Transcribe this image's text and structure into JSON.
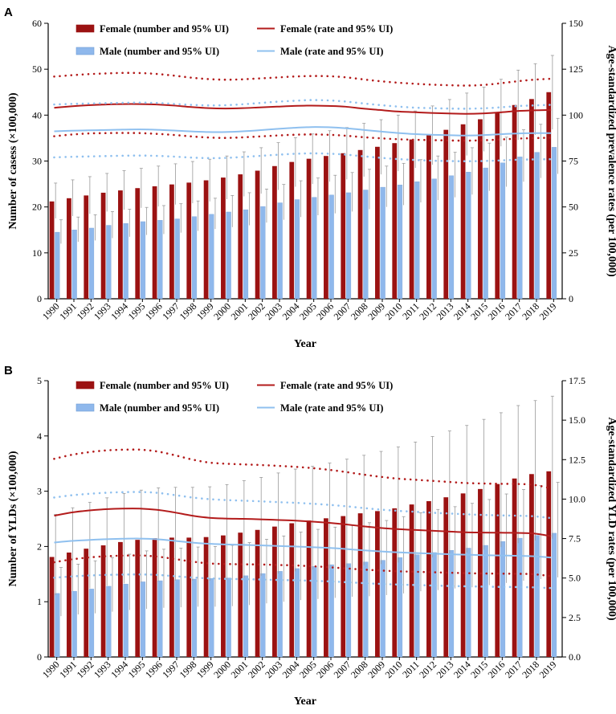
{
  "chart_data": [
    {
      "panel": "A",
      "type": "bar+line",
      "categories": [
        "1990",
        "1991",
        "1992",
        "1993",
        "1994",
        "1995",
        "1996",
        "1997",
        "1998",
        "1999",
        "2000",
        "2001",
        "2002",
        "2003",
        "2004",
        "2005",
        "2006",
        "2007",
        "2008",
        "2009",
        "2010",
        "2011",
        "2012",
        "2013",
        "2014",
        "2015",
        "2016",
        "2017",
        "2018",
        "2019"
      ],
      "xlabel": "Year",
      "ylabel_left": "Number of casess (×100,000)",
      "ylabel_right": "Age-standardized prevalence rates (per 100,000)",
      "ylim_left": [
        0,
        60
      ],
      "ylim_right": [
        0,
        150
      ],
      "yticks_left": [
        "0",
        "10",
        "20",
        "30",
        "40",
        "50",
        "60"
      ],
      "yticks_right": [
        "0",
        "25",
        "50",
        "75",
        "100",
        "125",
        "150"
      ],
      "legend": [
        "Female (number and 95% UI)",
        "Female (rate and 95% UI)",
        "Male (number and 95% UI)",
        "Male (rate and 95% UI)"
      ],
      "colors": {
        "female_bar": "#9b1212",
        "female_line": "#b31b1b",
        "male_bar": "#8fb8ec",
        "male_line": "#8fc0ef",
        "errorbar": "#9a9a9a"
      },
      "series": [
        {
          "name": "Female (number and 95% UI)",
          "kind": "bar",
          "values": [
            21.2,
            21.9,
            22.5,
            23.1,
            23.6,
            24.1,
            24.5,
            24.9,
            25.3,
            25.8,
            26.4,
            27.1,
            27.9,
            28.9,
            29.8,
            30.5,
            31.1,
            31.7,
            32.4,
            33.1,
            33.9,
            34.7,
            35.6,
            36.8,
            38.0,
            39.1,
            40.5,
            42.2,
            43.5,
            45.0
          ],
          "lower": [
            17.5,
            18.0,
            18.5,
            19.0,
            19.4,
            19.8,
            20.1,
            20.5,
            20.8,
            21.2,
            21.7,
            22.3,
            22.9,
            23.7,
            24.4,
            25.0,
            25.5,
            26.0,
            26.6,
            27.1,
            27.8,
            28.5,
            29.2,
            30.2,
            31.2,
            32.1,
            33.2,
            34.6,
            35.7,
            36.9
          ],
          "upper": [
            25.2,
            25.9,
            26.6,
            27.3,
            27.9,
            28.4,
            28.9,
            29.4,
            29.9,
            30.4,
            31.1,
            32.0,
            32.9,
            34.0,
            35.1,
            35.9,
            36.6,
            37.3,
            38.2,
            39.0,
            40.0,
            40.9,
            42.0,
            43.4,
            44.8,
            46.1,
            47.8,
            49.8,
            51.2,
            53.0
          ]
        },
        {
          "name": "Male (number and 95% UI)",
          "kind": "bar",
          "values": [
            14.5,
            15.0,
            15.4,
            16.0,
            16.4,
            16.8,
            17.1,
            17.4,
            17.9,
            18.4,
            18.9,
            19.4,
            20.1,
            20.9,
            21.6,
            22.1,
            22.6,
            23.1,
            23.7,
            24.3,
            24.8,
            25.5,
            26.1,
            26.8,
            27.6,
            28.5,
            29.6,
            30.9,
            31.9,
            33.0
          ],
          "lower": [
            12.0,
            12.4,
            12.7,
            13.2,
            13.5,
            13.9,
            14.1,
            14.4,
            14.8,
            15.2,
            15.6,
            16.0,
            16.6,
            17.2,
            17.8,
            18.2,
            18.6,
            19.0,
            19.5,
            20.0,
            20.4,
            21.0,
            21.5,
            22.1,
            22.7,
            23.5,
            24.4,
            25.5,
            26.3,
            27.2
          ],
          "upper": [
            17.2,
            17.8,
            18.3,
            19.0,
            19.5,
            19.9,
            20.3,
            20.7,
            21.3,
            21.9,
            22.5,
            23.1,
            23.9,
            24.9,
            25.7,
            26.3,
            26.9,
            27.5,
            28.2,
            28.9,
            29.5,
            30.3,
            31.1,
            31.9,
            32.9,
            33.9,
            35.2,
            36.8,
            38.0,
            39.3
          ]
        },
        {
          "name": "Female (rate and 95% UI)",
          "kind": "line",
          "axis": "right",
          "values": [
            104.0,
            104.8,
            105.4,
            105.8,
            106.0,
            106.0,
            105.8,
            105.2,
            104.4,
            103.8,
            103.6,
            103.8,
            104.2,
            104.6,
            105.0,
            105.2,
            105.0,
            104.6,
            103.6,
            102.8,
            102.0,
            101.6,
            101.2,
            100.9,
            100.7,
            100.9,
            101.5,
            102.2,
            102.6,
            102.8
          ],
          "lower": [
            88.5,
            89.4,
            90.0,
            90.2,
            90.3,
            90.2,
            89.8,
            89.2,
            88.4,
            87.8,
            87.6,
            87.9,
            88.4,
            88.9,
            89.3,
            89.5,
            89.3,
            88.8,
            88.0,
            87.4,
            86.9,
            86.6,
            86.4,
            86.2,
            86.1,
            86.3,
            86.7,
            87.2,
            87.5,
            87.7
          ],
          "upper": [
            121.0,
            121.7,
            122.3,
            122.7,
            123.0,
            122.9,
            122.4,
            121.5,
            120.4,
            119.6,
            119.3,
            119.5,
            120.0,
            120.5,
            121.0,
            121.3,
            121.2,
            120.6,
            119.5,
            118.5,
            117.7,
            117.1,
            116.6,
            116.3,
            116.1,
            116.4,
            117.3,
            118.4,
            119.3,
            119.8
          ]
        },
        {
          "name": "Male (rate and 95% UI)",
          "kind": "line",
          "axis": "right",
          "values": [
            91.2,
            91.5,
            91.7,
            91.9,
            92.1,
            92.2,
            92.0,
            91.6,
            91.1,
            90.8,
            90.8,
            91.2,
            91.8,
            92.5,
            93.1,
            93.5,
            93.4,
            92.9,
            92.0,
            91.1,
            90.3,
            89.7,
            89.3,
            89.1,
            88.9,
            89.1,
            89.6,
            90.0,
            90.2,
            90.2
          ],
          "lower": [
            77.0,
            77.3,
            77.5,
            77.7,
            77.9,
            78.0,
            77.8,
            77.4,
            76.9,
            76.6,
            76.7,
            77.2,
            77.8,
            78.4,
            78.9,
            79.2,
            79.0,
            78.5,
            77.6,
            76.8,
            76.1,
            75.6,
            75.2,
            75.0,
            74.9,
            75.0,
            75.3,
            75.7,
            75.9,
            76.0
          ],
          "upper": [
            105.8,
            106.1,
            106.3,
            106.5,
            106.7,
            106.8,
            106.6,
            106.1,
            105.6,
            105.3,
            105.4,
            105.9,
            106.6,
            107.3,
            107.8,
            108.2,
            108.0,
            107.4,
            106.4,
            105.5,
            104.7,
            104.1,
            103.8,
            103.6,
            103.5,
            103.7,
            104.2,
            104.9,
            105.3,
            105.6
          ]
        }
      ]
    },
    {
      "panel": "B",
      "type": "bar+line",
      "categories": [
        "1990",
        "1991",
        "1992",
        "1993",
        "1994",
        "1995",
        "1996",
        "1997",
        "1998",
        "1999",
        "2000",
        "2001",
        "2002",
        "2003",
        "2004",
        "2005",
        "2006",
        "2007",
        "2008",
        "2009",
        "2010",
        "2011",
        "2012",
        "2013",
        "2014",
        "2015",
        "2016",
        "2017",
        "2018",
        "2019"
      ],
      "xlabel": "Year",
      "ylabel_left": "Number of YLDs (×100,000)",
      "ylabel_right": "Age-standardized YLD rates (per 100,000)",
      "ylim_left": [
        0,
        5
      ],
      "ylim_right": [
        0,
        17.5
      ],
      "yticks_left": [
        "0",
        "1",
        "2",
        "3",
        "4",
        "5"
      ],
      "yticks_right": [
        "0.0",
        "2.5",
        "5.0",
        "7.5",
        "10.0",
        "12.5",
        "15.0",
        "17.5"
      ],
      "legend": [
        "Female (number and 95% UI)",
        "Female (rate and 95% UI)",
        "Male (number and 95% UI)",
        "Male (rate and 95% UI)"
      ],
      "colors": {
        "female_bar": "#9b1212",
        "female_line": "#b31b1b",
        "male_bar": "#8fb8ec",
        "male_line": "#8fc0ef",
        "errorbar": "#9a9a9a"
      },
      "series": [
        {
          "name": "Female (number and 95% UI)",
          "kind": "bar",
          "values": [
            1.81,
            1.89,
            1.96,
            2.02,
            2.08,
            2.12,
            2.15,
            2.16,
            2.16,
            2.17,
            2.2,
            2.25,
            2.3,
            2.36,
            2.42,
            2.47,
            2.51,
            2.55,
            2.6,
            2.64,
            2.69,
            2.76,
            2.82,
            2.89,
            2.96,
            3.04,
            3.13,
            3.23,
            3.31,
            3.36
          ],
          "lower": [
            1.12,
            1.19,
            1.24,
            1.29,
            1.33,
            1.35,
            1.37,
            1.38,
            1.38,
            1.38,
            1.4,
            1.43,
            1.47,
            1.51,
            1.55,
            1.58,
            1.6,
            1.62,
            1.66,
            1.68,
            1.71,
            1.76,
            1.8,
            1.84,
            1.89,
            1.94,
            1.99,
            2.06,
            2.11,
            2.14
          ],
          "upper": [
            2.58,
            2.7,
            2.8,
            2.88,
            2.96,
            3.02,
            3.06,
            3.07,
            3.07,
            3.08,
            3.12,
            3.19,
            3.25,
            3.33,
            3.4,
            3.45,
            3.51,
            3.58,
            3.65,
            3.72,
            3.8,
            3.89,
            3.99,
            4.09,
            4.19,
            4.3,
            4.42,
            4.55,
            4.64,
            4.72
          ]
        },
        {
          "name": "Male (number and 95% UI)",
          "kind": "bar",
          "values": [
            1.15,
            1.19,
            1.23,
            1.28,
            1.32,
            1.36,
            1.38,
            1.4,
            1.41,
            1.42,
            1.43,
            1.47,
            1.51,
            1.55,
            1.6,
            1.64,
            1.67,
            1.69,
            1.72,
            1.75,
            1.8,
            1.85,
            1.89,
            1.93,
            1.97,
            2.02,
            2.09,
            2.15,
            2.2,
            2.24
          ],
          "lower": [
            0.74,
            0.77,
            0.79,
            0.82,
            0.85,
            0.87,
            0.89,
            0.9,
            0.91,
            0.91,
            0.92,
            0.94,
            0.97,
            1.0,
            1.03,
            1.05,
            1.07,
            1.09,
            1.1,
            1.12,
            1.15,
            1.19,
            1.21,
            1.24,
            1.26,
            1.3,
            1.34,
            1.38,
            1.41,
            1.44
          ],
          "upper": [
            1.62,
            1.68,
            1.74,
            1.8,
            1.86,
            1.92,
            1.95,
            1.97,
            1.99,
            2.0,
            2.02,
            2.07,
            2.13,
            2.19,
            2.26,
            2.31,
            2.35,
            2.38,
            2.43,
            2.47,
            2.54,
            2.61,
            2.67,
            2.72,
            2.78,
            2.85,
            2.95,
            3.03,
            3.1,
            3.16
          ]
        },
        {
          "name": "Female (rate and 95% UI)",
          "kind": "line",
          "axis": "right",
          "values": [
            8.95,
            9.15,
            9.28,
            9.36,
            9.4,
            9.4,
            9.32,
            9.16,
            8.96,
            8.82,
            8.77,
            8.75,
            8.72,
            8.68,
            8.64,
            8.58,
            8.5,
            8.4,
            8.28,
            8.18,
            8.1,
            8.05,
            8.0,
            7.95,
            7.9,
            7.88,
            7.87,
            7.86,
            7.82,
            7.65
          ],
          "lower": [
            6.0,
            6.18,
            6.3,
            6.38,
            6.42,
            6.43,
            6.36,
            6.21,
            6.05,
            5.93,
            5.89,
            5.87,
            5.86,
            5.83,
            5.8,
            5.75,
            5.69,
            5.61,
            5.54,
            5.48,
            5.43,
            5.4,
            5.37,
            5.34,
            5.31,
            5.29,
            5.28,
            5.27,
            5.24,
            5.12
          ],
          "upper": [
            12.55,
            12.8,
            12.97,
            13.08,
            13.13,
            13.13,
            13.02,
            12.79,
            12.52,
            12.32,
            12.24,
            12.2,
            12.16,
            12.11,
            12.05,
            11.97,
            11.86,
            11.72,
            11.56,
            11.42,
            11.3,
            11.23,
            11.16,
            11.09,
            11.02,
            10.99,
            10.97,
            10.96,
            10.9,
            10.68
          ]
        },
        {
          "name": "Male (rate and 95% UI)",
          "kind": "line",
          "axis": "right",
          "values": [
            7.25,
            7.35,
            7.41,
            7.46,
            7.49,
            7.5,
            7.46,
            7.36,
            7.25,
            7.17,
            7.13,
            7.1,
            7.07,
            7.03,
            7.0,
            6.96,
            6.91,
            6.84,
            6.76,
            6.69,
            6.63,
            6.59,
            6.55,
            6.51,
            6.48,
            6.45,
            6.43,
            6.41,
            6.38,
            6.3
          ],
          "lower": [
            5.02,
            5.1,
            5.16,
            5.2,
            5.22,
            5.23,
            5.2,
            5.12,
            5.04,
            4.98,
            4.95,
            4.93,
            4.91,
            4.88,
            4.86,
            4.83,
            4.79,
            4.74,
            4.68,
            4.63,
            4.59,
            4.56,
            4.53,
            4.5,
            4.48,
            4.46,
            4.44,
            4.43,
            4.41,
            4.36
          ],
          "upper": [
            10.1,
            10.24,
            10.33,
            10.4,
            10.44,
            10.45,
            10.4,
            10.26,
            10.11,
            10.0,
            9.94,
            9.9,
            9.86,
            9.81,
            9.77,
            9.71,
            9.64,
            9.55,
            9.44,
            9.34,
            9.26,
            9.2,
            9.14,
            9.09,
            9.04,
            9.0,
            8.97,
            8.95,
            8.91,
            8.8
          ]
        }
      ]
    }
  ]
}
